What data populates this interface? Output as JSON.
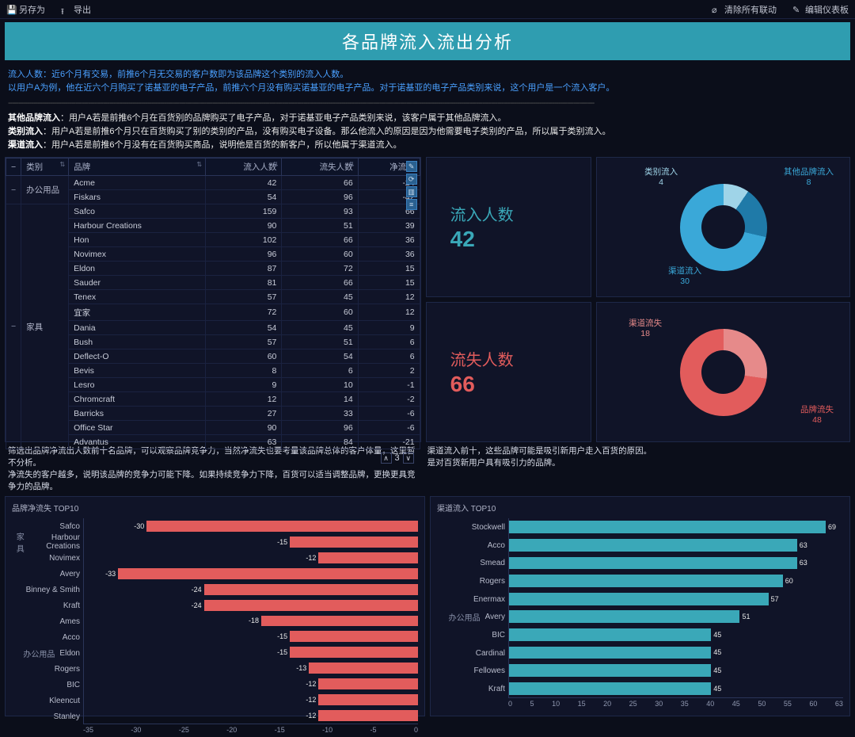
{
  "toolbar": {
    "save_as": "另存为",
    "export": "导出",
    "clear_link": "清除所有联动",
    "edit_dash": "编辑仪表板"
  },
  "title": "各品牌流入流出分析",
  "desc": {
    "l1": "流入人数：近6个月有交易，前推6个月无交易的客户数即为该品牌这个类别的流入人数。",
    "l2": "以用户A为例，他在近六个月购买了诺基亚的电子产品，前推六个月没有购买诺基亚的电子产品。对于诺基亚的电子产品类别来说，这个用户是一个流入客户。",
    "l3a": "其他品牌流入",
    "l3b": "：用户A若是前推6个月在百货别的品牌购买了电子产品，对于诺基亚电子产品类别来说，该客户属于其他品牌流入。",
    "l4a": "类别流入",
    "l4b": "：用户A若是前推6个月只在百货购买了别的类别的产品，没有购买电子设备。那么他流入的原因是因为他需要电子类别的产品，所以属于类别流入。",
    "l5a": "渠道流入",
    "l5b": "：用户A若是前推6个月没有在百货购买商品，说明他是百货的新客户，所以他属于渠道流入。"
  },
  "table": {
    "headers": [
      "类别",
      "品牌",
      "流入人数",
      "流失人数",
      "净流入"
    ],
    "groups": [
      {
        "cat": "办公用品",
        "rows": [
          [
            "Acme",
            42,
            66,
            -24
          ],
          [
            "Fiskars",
            54,
            96,
            -42
          ]
        ]
      },
      {
        "cat": "家具",
        "rows": [
          [
            "Safco",
            159,
            93,
            66
          ],
          [
            "Harbour Creations",
            90,
            51,
            39
          ],
          [
            "Hon",
            102,
            66,
            36
          ],
          [
            "Novimex",
            96,
            60,
            36
          ],
          [
            "Eldon",
            87,
            72,
            15
          ],
          [
            "Sauder",
            81,
            66,
            15
          ],
          [
            "Tenex",
            57,
            45,
            12
          ],
          [
            "宜家",
            72,
            60,
            12
          ],
          [
            "Dania",
            54,
            45,
            9
          ],
          [
            "Bush",
            57,
            51,
            6
          ],
          [
            "Deflect-O",
            60,
            54,
            6
          ],
          [
            "Bevis",
            8,
            6,
            2
          ],
          [
            "Lesro",
            9,
            10,
            -1
          ],
          [
            "Chromcraft",
            12,
            14,
            -2
          ],
          [
            "Barricks",
            27,
            33,
            -6
          ],
          [
            "Office Star",
            90,
            96,
            -6
          ],
          [
            "Advantus",
            63,
            84,
            -21
          ]
        ]
      }
    ],
    "page": "3"
  },
  "kpi": {
    "inflow_label": "流入人数",
    "inflow_value": "42",
    "outflow_label": "流失人数",
    "outflow_value": "66",
    "inflow_color": "#3aa8b8",
    "outflow_color": "#e25c5c"
  },
  "donut1": {
    "segments": [
      {
        "label": "类别流入",
        "value": 4,
        "color": "#9fd4e8"
      },
      {
        "label": "其他品牌流入",
        "value": 8,
        "color": "#1f7aa8"
      },
      {
        "label": "渠道流入",
        "value": 30,
        "color": "#3aa8d8"
      }
    ],
    "total": 42
  },
  "donut2": {
    "segments": [
      {
        "label": "渠道流失",
        "value": 18,
        "color": "#e68a8a"
      },
      {
        "label": "品牌流失",
        "value": 48,
        "color": "#e25c5c"
      }
    ],
    "total": 66
  },
  "notes": {
    "left": "筛选出品牌净流出人数前十名品牌，可以观察品牌竞争力，当然净流失也要考量该品牌总体的客户体量，这里暂不分析。\n净流失的客户越多，说明该品牌的竞争力可能下降。如果持续竞争力下降，百货可以适当调整品牌，更换更具竞争力的品牌。",
    "right": "渠道流入前十，这些品牌可能是吸引新用户走入百货的原因。\n是对百货新用户具有吸引力的品牌。"
  },
  "bar_left": {
    "title": "品牌净流失 TOP10",
    "axis": {
      "min": -35,
      "max": 0,
      "ticks": [
        -35,
        -30,
        -25,
        -20,
        -15,
        -10,
        -5,
        0
      ]
    },
    "groups": [
      {
        "cat": "家具",
        "items": [
          [
            "Safco",
            -30
          ],
          [
            "Harbour Creations",
            -15
          ],
          [
            "Novimex",
            -12
          ]
        ]
      },
      {
        "cat": "办公用品",
        "items": [
          [
            "Avery",
            -33
          ],
          [
            "Binney & Smith",
            -24
          ],
          [
            "Kraft",
            -24
          ],
          [
            "Ames",
            -18
          ],
          [
            "Acco",
            -15
          ],
          [
            "Eldon",
            -15
          ],
          [
            "Rogers",
            -13
          ],
          [
            "BIC",
            -12
          ],
          [
            "Kleencut",
            -12
          ],
          [
            "Stanley",
            -12
          ]
        ]
      }
    ],
    "color": "#e25c5c"
  },
  "bar_right": {
    "title": "渠道流入 TOP10",
    "axis": {
      "min": 0,
      "max": 70,
      "ticks": [
        0,
        5,
        10,
        15,
        20,
        25,
        30,
        35,
        40,
        45,
        50,
        55,
        60,
        63
      ]
    },
    "groups": [
      {
        "cat": "办公用品",
        "items": [
          [
            "Stockwell",
            69
          ],
          [
            "Acco",
            63
          ],
          [
            "Smead",
            63
          ],
          [
            "Rogers",
            60
          ],
          [
            "Enermax",
            57
          ],
          [
            "Avery",
            51
          ],
          [
            "BIC",
            45
          ],
          [
            "Cardinal",
            45
          ],
          [
            "Fellowes",
            45
          ],
          [
            "Kraft",
            45
          ]
        ]
      }
    ],
    "color": "#3aa8b8"
  }
}
